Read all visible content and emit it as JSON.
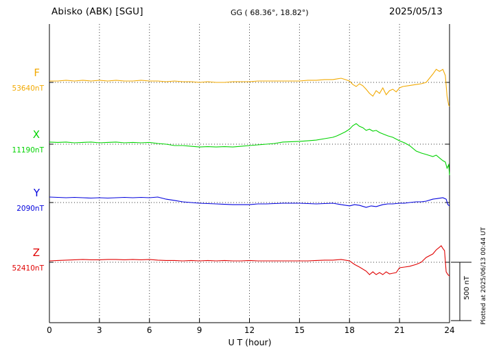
{
  "header": {
    "station": "Abisko (ABK)  [SGU]",
    "coords": "GG ( 68.36°,  18.82°)",
    "date": "2025/05/13"
  },
  "note": "Plotted at 2025/06/13 00:44 UT",
  "scale_bar": {
    "label": "500 nT",
    "nT": 500
  },
  "chart_data": {
    "type": "line",
    "title": "Abisko (ABK) [SGU] magnetogram 2025/05/13",
    "xlabel": "U T (hour)",
    "x_ticks": [
      0,
      3,
      6,
      9,
      12,
      15,
      18,
      21,
      24
    ],
    "xlim": [
      0,
      24
    ],
    "grid": "dotted vertical lines every 3 h; dotted horizontal baseline per component",
    "legend_position": "left margin component labels",
    "points_unit": "nT offset from component baseline",
    "series": [
      {
        "name": "F",
        "color": "#f2a900",
        "baseline_nT": 53640,
        "baseline_label": "53640nT",
        "points": [
          [
            0,
            12
          ],
          [
            0.5,
            12
          ],
          [
            1,
            18
          ],
          [
            1.5,
            12
          ],
          [
            2,
            18
          ],
          [
            2.5,
            12
          ],
          [
            3,
            18
          ],
          [
            3.5,
            12
          ],
          [
            4,
            18
          ],
          [
            4.5,
            12
          ],
          [
            5,
            12
          ],
          [
            5.5,
            18
          ],
          [
            6,
            12
          ],
          [
            6.5,
            12
          ],
          [
            7,
            6
          ],
          [
            7.5,
            12
          ],
          [
            8,
            6
          ],
          [
            8.5,
            6
          ],
          [
            9,
            0
          ],
          [
            9.5,
            6
          ],
          [
            10,
            0
          ],
          [
            10.5,
            0
          ],
          [
            11,
            6
          ],
          [
            11.5,
            6
          ],
          [
            12,
            6
          ],
          [
            12.5,
            12
          ],
          [
            13,
            12
          ],
          [
            13.5,
            12
          ],
          [
            14,
            12
          ],
          [
            14.5,
            12
          ],
          [
            15,
            12
          ],
          [
            15.5,
            18
          ],
          [
            16,
            18
          ],
          [
            16.5,
            24
          ],
          [
            17,
            24
          ],
          [
            17.25,
            30
          ],
          [
            17.5,
            35
          ],
          [
            17.75,
            24
          ],
          [
            18,
            12
          ],
          [
            18.2,
            -18
          ],
          [
            18.4,
            -35
          ],
          [
            18.6,
            -12
          ],
          [
            18.8,
            -29
          ],
          [
            19,
            -59
          ],
          [
            19.2,
            -94
          ],
          [
            19.4,
            -118
          ],
          [
            19.6,
            -71
          ],
          [
            19.8,
            -94
          ],
          [
            20,
            -47
          ],
          [
            20.2,
            -106
          ],
          [
            20.4,
            -71
          ],
          [
            20.6,
            -59
          ],
          [
            20.8,
            -82
          ],
          [
            21,
            -47
          ],
          [
            21.2,
            -35
          ],
          [
            21.5,
            -29
          ],
          [
            22,
            -18
          ],
          [
            22.3,
            -12
          ],
          [
            22.6,
            0
          ],
          [
            23,
            71
          ],
          [
            23.2,
            112
          ],
          [
            23.4,
            94
          ],
          [
            23.6,
            112
          ],
          [
            23.75,
            59
          ],
          [
            23.85,
            -118
          ],
          [
            23.95,
            -195
          ],
          [
            24,
            -206
          ]
        ]
      },
      {
        "name": "X",
        "color": "#00d300",
        "baseline_nT": 11190,
        "baseline_label": "11190nT",
        "points": [
          [
            0,
            18
          ],
          [
            0.5,
            15
          ],
          [
            1,
            18
          ],
          [
            1.5,
            12
          ],
          [
            2,
            15
          ],
          [
            2.5,
            18
          ],
          [
            3,
            12
          ],
          [
            3.5,
            15
          ],
          [
            4,
            18
          ],
          [
            4.5,
            12
          ],
          [
            5,
            15
          ],
          [
            5.5,
            12
          ],
          [
            6,
            15
          ],
          [
            6.5,
            6
          ],
          [
            7,
            0
          ],
          [
            7.5,
            -12
          ],
          [
            8,
            -12
          ],
          [
            8.5,
            -18
          ],
          [
            9,
            -24
          ],
          [
            9.5,
            -21
          ],
          [
            10,
            -24
          ],
          [
            10.5,
            -21
          ],
          [
            11,
            -24
          ],
          [
            11.5,
            -18
          ],
          [
            12,
            -12
          ],
          [
            12.5,
            -6
          ],
          [
            13,
            0
          ],
          [
            13.5,
            6
          ],
          [
            14,
            18
          ],
          [
            14.5,
            21
          ],
          [
            15,
            24
          ],
          [
            15.5,
            29
          ],
          [
            16,
            35
          ],
          [
            16.5,
            47
          ],
          [
            17,
            59
          ],
          [
            17.25,
            71
          ],
          [
            17.5,
            88
          ],
          [
            17.75,
            106
          ],
          [
            18,
            129
          ],
          [
            18.2,
            159
          ],
          [
            18.4,
            176
          ],
          [
            18.6,
            153
          ],
          [
            18.8,
            141
          ],
          [
            19,
            118
          ],
          [
            19.2,
            129
          ],
          [
            19.4,
            112
          ],
          [
            19.6,
            118
          ],
          [
            19.8,
            100
          ],
          [
            20,
            88
          ],
          [
            20.3,
            71
          ],
          [
            20.6,
            59
          ],
          [
            21,
            29
          ],
          [
            21.3,
            12
          ],
          [
            21.6,
            -12
          ],
          [
            22,
            -59
          ],
          [
            22.3,
            -76
          ],
          [
            22.6,
            -88
          ],
          [
            23,
            -106
          ],
          [
            23.2,
            -94
          ],
          [
            23.4,
            -118
          ],
          [
            23.6,
            -141
          ],
          [
            23.75,
            -153
          ],
          [
            23.85,
            -206
          ],
          [
            23.95,
            -176
          ],
          [
            24,
            -265
          ]
        ]
      },
      {
        "name": "Y",
        "color": "#0000dd",
        "baseline_nT": 2090,
        "baseline_label": "2090nT",
        "points": [
          [
            0,
            47
          ],
          [
            0.5,
            44
          ],
          [
            1,
            41
          ],
          [
            1.5,
            44
          ],
          [
            2,
            41
          ],
          [
            2.5,
            38
          ],
          [
            3,
            41
          ],
          [
            3.5,
            38
          ],
          [
            4,
            41
          ],
          [
            4.5,
            44
          ],
          [
            5,
            41
          ],
          [
            5.5,
            44
          ],
          [
            6,
            41
          ],
          [
            6.5,
            47
          ],
          [
            7,
            29
          ],
          [
            7.5,
            18
          ],
          [
            8,
            6
          ],
          [
            8.5,
            0
          ],
          [
            9,
            -6
          ],
          [
            9.5,
            -9
          ],
          [
            10,
            -12
          ],
          [
            10.5,
            -15
          ],
          [
            11,
            -18
          ],
          [
            11.5,
            -18
          ],
          [
            12,
            -18
          ],
          [
            12.5,
            -12
          ],
          [
            13,
            -12
          ],
          [
            13.5,
            -9
          ],
          [
            14,
            -6
          ],
          [
            14.5,
            -6
          ],
          [
            15,
            -6
          ],
          [
            15.5,
            -9
          ],
          [
            16,
            -12
          ],
          [
            16.5,
            -9
          ],
          [
            17,
            -6
          ],
          [
            17.5,
            -18
          ],
          [
            18,
            -29
          ],
          [
            18.3,
            -18
          ],
          [
            18.6,
            -24
          ],
          [
            19,
            -41
          ],
          [
            19.3,
            -29
          ],
          [
            19.6,
            -35
          ],
          [
            20,
            -18
          ],
          [
            20.3,
            -12
          ],
          [
            20.6,
            -12
          ],
          [
            21,
            -6
          ],
          [
            21.3,
            -6
          ],
          [
            21.6,
            0
          ],
          [
            22,
            6
          ],
          [
            22.3,
            6
          ],
          [
            22.6,
            12
          ],
          [
            23,
            29
          ],
          [
            23.3,
            35
          ],
          [
            23.6,
            41
          ],
          [
            23.8,
            29
          ],
          [
            23.9,
            -18
          ],
          [
            24,
            -29
          ]
        ]
      },
      {
        "name": "Z",
        "color": "#e00000",
        "baseline_nT": 52410,
        "baseline_label": "52410nT",
        "points": [
          [
            0,
            12
          ],
          [
            0.5,
            15
          ],
          [
            1,
            18
          ],
          [
            1.5,
            21
          ],
          [
            2,
            24
          ],
          [
            2.5,
            21
          ],
          [
            3,
            21
          ],
          [
            3.5,
            24
          ],
          [
            4,
            24
          ],
          [
            4.5,
            21
          ],
          [
            5,
            24
          ],
          [
            5.5,
            21
          ],
          [
            6,
            24
          ],
          [
            6.5,
            18
          ],
          [
            7,
            15
          ],
          [
            7.5,
            15
          ],
          [
            8,
            12
          ],
          [
            8.5,
            15
          ],
          [
            9,
            12
          ],
          [
            9.5,
            15
          ],
          [
            10,
            12
          ],
          [
            10.5,
            15
          ],
          [
            11,
            12
          ],
          [
            11.5,
            12
          ],
          [
            12,
            15
          ],
          [
            12.5,
            12
          ],
          [
            13,
            12
          ],
          [
            13.5,
            12
          ],
          [
            14,
            12
          ],
          [
            14.5,
            12
          ],
          [
            15,
            12
          ],
          [
            15.5,
            12
          ],
          [
            16,
            15
          ],
          [
            16.5,
            18
          ],
          [
            17,
            18
          ],
          [
            17.5,
            24
          ],
          [
            18,
            12
          ],
          [
            18.3,
            -18
          ],
          [
            18.6,
            -41
          ],
          [
            19,
            -76
          ],
          [
            19.2,
            -106
          ],
          [
            19.4,
            -82
          ],
          [
            19.6,
            -106
          ],
          [
            19.8,
            -88
          ],
          [
            20,
            -106
          ],
          [
            20.2,
            -82
          ],
          [
            20.4,
            -100
          ],
          [
            20.6,
            -94
          ],
          [
            20.8,
            -88
          ],
          [
            21,
            -47
          ],
          [
            21.3,
            -41
          ],
          [
            21.6,
            -35
          ],
          [
            22,
            -18
          ],
          [
            22.3,
            0
          ],
          [
            22.6,
            41
          ],
          [
            23,
            71
          ],
          [
            23.2,
            106
          ],
          [
            23.4,
            129
          ],
          [
            23.5,
            141
          ],
          [
            23.6,
            118
          ],
          [
            23.7,
            100
          ],
          [
            23.8,
            -82
          ],
          [
            23.9,
            -106
          ],
          [
            24,
            -118
          ]
        ]
      }
    ]
  }
}
